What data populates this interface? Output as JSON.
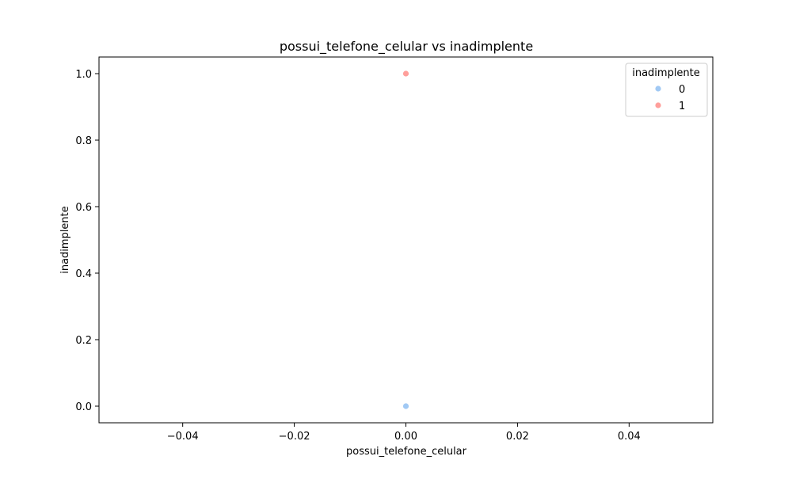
{
  "chart_data": {
    "type": "scatter",
    "title": "possui_telefone_celular vs inadimplente",
    "xlabel": "possui_telefone_celular",
    "ylabel": "inadimplente",
    "xlim": [
      -0.055,
      0.055
    ],
    "ylim": [
      -0.05,
      1.05
    ],
    "xticks": [
      -0.04,
      -0.02,
      0.0,
      0.02,
      0.04
    ],
    "xtick_labels": [
      "−0.04",
      "−0.02",
      "0.00",
      "0.02",
      "0.04"
    ],
    "yticks": [
      0.0,
      0.2,
      0.4,
      0.6,
      0.8,
      1.0
    ],
    "ytick_labels": [
      "0.0",
      "0.2",
      "0.4",
      "0.6",
      "0.8",
      "1.0"
    ],
    "grid": false,
    "legend": {
      "title": "inadimplente",
      "placement": "top-right"
    },
    "series": [
      {
        "name": "0",
        "color": "#a1c9f4",
        "points": [
          [
            0.0,
            0.0
          ]
        ]
      },
      {
        "name": "1",
        "color": "#ff9f9b",
        "points": [
          [
            0.0,
            1.0
          ]
        ]
      }
    ]
  }
}
